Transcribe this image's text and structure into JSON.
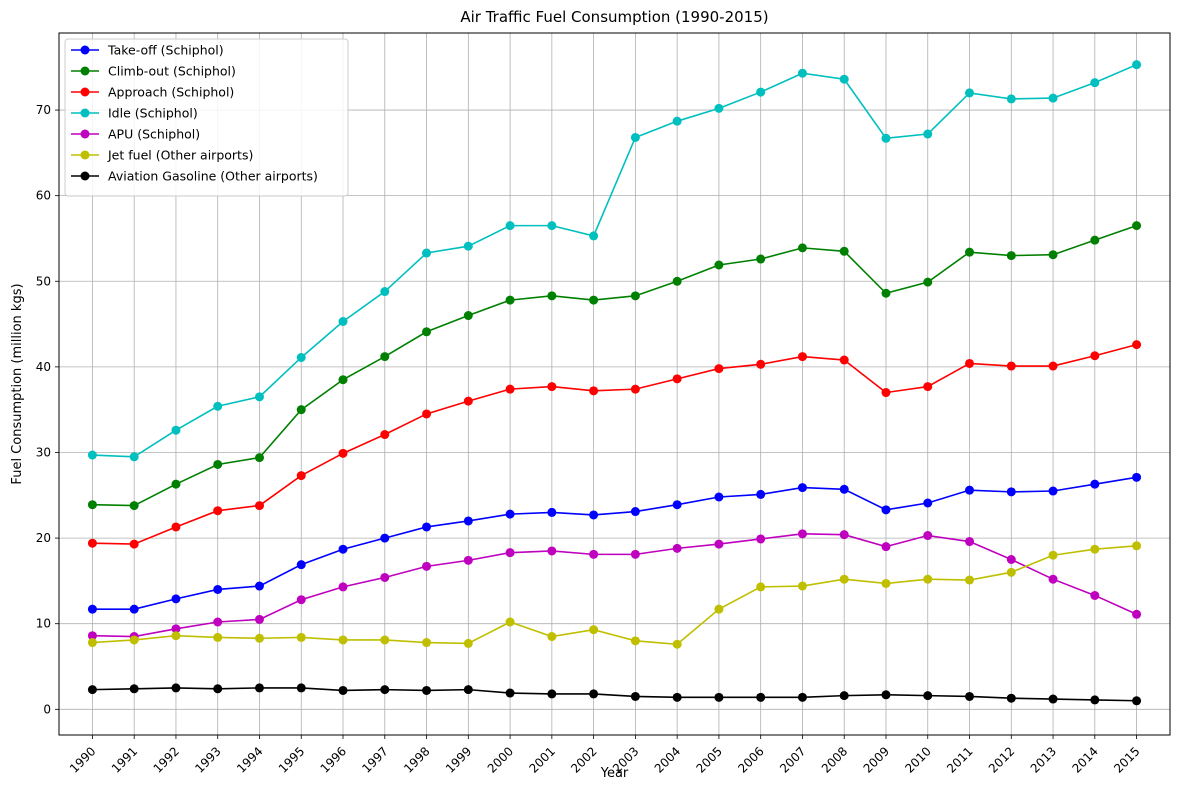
{
  "chart_data": {
    "type": "line",
    "title": "Air Traffic Fuel Consumption (1990-2015)",
    "xlabel": "Year",
    "ylabel": "Fuel Consumption (million kgs)",
    "x": [
      1990,
      1991,
      1992,
      1993,
      1994,
      1995,
      1996,
      1997,
      1998,
      1999,
      2000,
      2001,
      2002,
      2003,
      2004,
      2005,
      2006,
      2007,
      2008,
      2009,
      2010,
      2011,
      2012,
      2013,
      2014,
      2015
    ],
    "xtick_labels": [
      "1990",
      "1991",
      "1992",
      "1993",
      "1994",
      "1995",
      "1996",
      "1997",
      "1998",
      "1999",
      "2000",
      "2001",
      "2002",
      "2003",
      "2004",
      "2005",
      "2006",
      "2007",
      "2008",
      "2009",
      "2010",
      "2011",
      "2012",
      "2013",
      "2014",
      "2015"
    ],
    "yticks": [
      0,
      10,
      20,
      30,
      40,
      50,
      60,
      70
    ],
    "ytick_labels": [
      "0",
      "10",
      "20",
      "30",
      "40",
      "50",
      "60",
      "70"
    ],
    "ylim": [
      -3,
      79
    ],
    "xlim": [
      1989.2,
      2015.8
    ],
    "grid": true,
    "legend_position": "upper-left",
    "series": [
      {
        "name": "Take-off (Schiphol)",
        "color": "#0000ff",
        "values": [
          11.7,
          11.7,
          12.9,
          14.0,
          14.4,
          16.9,
          18.7,
          20.0,
          21.3,
          22.0,
          22.8,
          23.0,
          22.7,
          23.1,
          23.9,
          24.8,
          25.1,
          25.9,
          25.7,
          23.3,
          24.1,
          25.6,
          25.4,
          25.5,
          26.3,
          27.1
        ]
      },
      {
        "name": "Climb-out (Schiphol)",
        "color": "#008000",
        "values": [
          23.9,
          23.8,
          26.3,
          28.6,
          29.4,
          35.0,
          38.5,
          41.2,
          44.1,
          46.0,
          47.8,
          48.3,
          47.8,
          48.3,
          50.0,
          51.9,
          52.6,
          53.9,
          53.5,
          48.6,
          49.9,
          53.4,
          53.0,
          53.1,
          54.8,
          56.5
        ]
      },
      {
        "name": "Approach (Schiphol)",
        "color": "#ff0000",
        "values": [
          19.4,
          19.3,
          21.3,
          23.2,
          23.8,
          27.3,
          29.9,
          32.1,
          34.5,
          36.0,
          37.4,
          37.7,
          37.2,
          37.4,
          38.6,
          39.8,
          40.3,
          41.2,
          40.8,
          37.0,
          37.7,
          40.4,
          40.1,
          40.1,
          41.3,
          42.6
        ]
      },
      {
        "name": "Idle (Schiphol)",
        "color": "#00bfbf",
        "values": [
          29.7,
          29.5,
          32.6,
          35.4,
          36.5,
          41.1,
          45.3,
          48.8,
          53.3,
          54.1,
          56.5,
          56.5,
          55.3,
          66.8,
          68.7,
          70.2,
          72.1,
          74.3,
          73.6,
          66.7,
          67.2,
          72.0,
          71.3,
          71.4,
          73.2,
          75.3
        ]
      },
      {
        "name": "APU (Schiphol)",
        "color": "#bf00bf",
        "values": [
          8.6,
          8.5,
          9.4,
          10.2,
          10.5,
          12.8,
          14.3,
          15.4,
          16.7,
          17.4,
          18.3,
          18.5,
          18.1,
          18.1,
          18.8,
          19.3,
          19.9,
          20.5,
          20.4,
          19.0,
          20.3,
          19.6,
          17.5,
          15.2,
          13.3,
          11.1
        ]
      },
      {
        "name": "Jet fuel (Other airports)",
        "color": "#bfbf00",
        "values": [
          7.8,
          8.1,
          8.6,
          8.4,
          8.3,
          8.4,
          8.1,
          8.1,
          7.8,
          7.7,
          10.2,
          8.5,
          9.3,
          8.0,
          7.6,
          11.7,
          14.3,
          14.4,
          15.2,
          14.7,
          15.2,
          15.1,
          16.0,
          18.0,
          18.7,
          19.1
        ]
      },
      {
        "name": "Aviation Gasoline (Other airports)",
        "color": "#000000",
        "values": [
          2.3,
          2.4,
          2.5,
          2.4,
          2.5,
          2.5,
          2.2,
          2.3,
          2.2,
          2.3,
          1.9,
          1.8,
          1.8,
          1.5,
          1.4,
          1.4,
          1.4,
          1.4,
          1.6,
          1.7,
          1.6,
          1.5,
          1.3,
          1.2,
          1.1,
          1.0
        ]
      }
    ]
  }
}
